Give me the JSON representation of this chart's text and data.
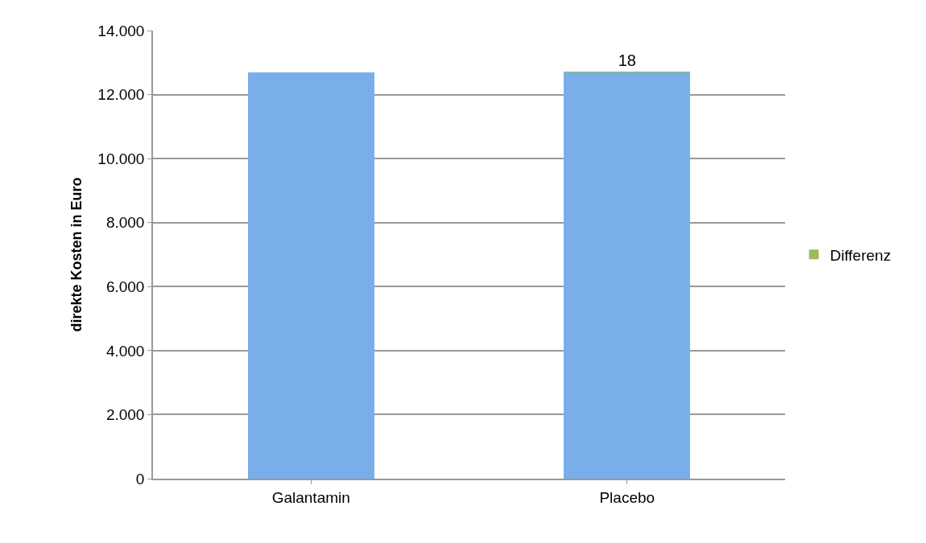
{
  "chart_data": {
    "type": "bar",
    "stacked": true,
    "ylabel": "direkte Kosten in Euro",
    "categories": [
      "Galantamin",
      "Placebo"
    ],
    "series": [
      {
        "color": "#7aaeea",
        "values": [
          12700,
          12700
        ]
      },
      {
        "name": "Differenz",
        "color": "#9bbb59",
        "values": [
          null,
          18
        ],
        "value_labels": [
          null,
          "18"
        ]
      }
    ],
    "ylim": [
      0,
      14000
    ],
    "yticks": [
      0,
      {
        "value": 2000,
        "label": "2.000"
      },
      {
        "value": 4000,
        "label": "4.000"
      },
      {
        "value": 6000,
        "label": "6.000"
      },
      {
        "value": 8000,
        "label": "8.000"
      },
      {
        "value": 10000,
        "label": "10.000"
      },
      {
        "value": 12000,
        "label": "12.000"
      },
      {
        "value": 14000,
        "label": "14.000"
      }
    ],
    "grid": "y",
    "legend": "right"
  }
}
